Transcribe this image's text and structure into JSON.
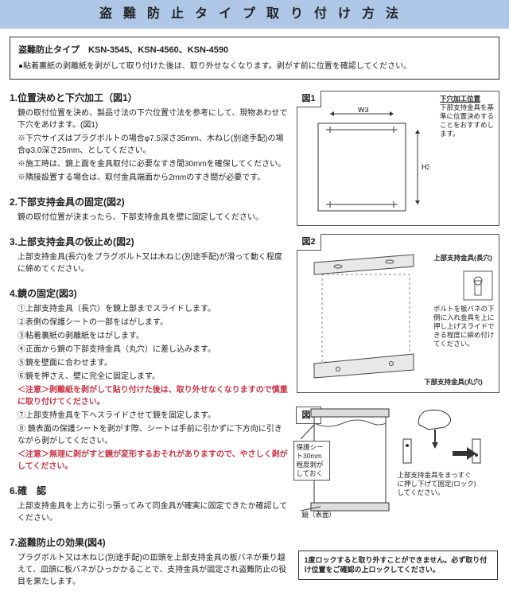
{
  "header": "盗難防止タイプ取り付け方法",
  "notice": {
    "models": "盗難防止タイプ　KSN-3545、KSN-4560、KSN-4590",
    "warn": "●粘着裏紙の剥離紙を剥がして取り付けた後は、取り外せなくなります。剥がす前に位置を確認してください。"
  },
  "sections": [
    {
      "title": "1.位置決めと下穴加工（図1）",
      "lines": [
        "鏡の取付位置を決め、製品寸法の下穴位置寸法を参考にして、現物あわせで下穴をあけます。(図1)",
        "※下穴サイズはプラグボルトの場合φ7.5深さ35mm、木ねじ(別途手配)の場合φ3.0深さ25mm、としてください。",
        "※施工時は、鏡上面を金具取付に必要なすき間30mmを確保してください。",
        "※隣接設置する場合は、取付金具端面から2mmのすき間が必要です。"
      ]
    },
    {
      "title": "2.下部支持金具の固定(図2)",
      "lines": [
        "鏡の取付位置が決まったら、下部支持金具を壁に固定してください。"
      ]
    },
    {
      "title": "3.上部支持金具の仮止め(図2)",
      "lines": [
        "上部支持金具(長穴)をプラグボルト又は木ねじ(別途手配)が滑って動く程度に締めてください。"
      ]
    },
    {
      "title": "4.鏡の固定(図3)",
      "lines": [
        "①上部支持金具（長穴）を鏡上部までスライドします。",
        "②表側の保護シートの一部をはがします。",
        "③粘着裏紙の剥離紙をはがします。",
        "④正面から鏡の下部支持金具（丸穴）に差し込みます。",
        "⑤鏡を壁面に合わせます。",
        "⑥鏡を押さえ、壁に完全に固定します。",
        {
          "t": "＜注意＞剥離紙を剥がして貼り付けた後は、取り外せなくなりますので慎重に取り付けてください。",
          "c": true
        },
        "⑦上部支持金具を下へスライドさせて鏡を固定します。",
        "⑧ 鏡表面の保護シートを剥がす際、シートは手前に引かずに下方向に引きながら剥がしてください。",
        {
          "t": "＜注意＞無理に剥がすと鏡が変形するおそれがありますので、やさしく剥がしてください。",
          "c": true
        }
      ]
    },
    {
      "title": "6.確　認",
      "lines": [
        "上部支持金具を上方に引っ張ってみて同金具が確実に固定できたか確認してください。"
      ]
    },
    {
      "title": "7.盗難防止の効果(図4)",
      "lines": [
        "プラグボルト又は木ねじ(別途手配)の皿頭を上部支持金具の板バネが乗り越えて、皿頭に板バネがひっかかることで、支持金具が固定され盗難防止の役目を果たします。"
      ]
    }
  ],
  "fig1": {
    "label": "図1",
    "w_label": "W3",
    "h_label": "H3",
    "note_title": "下穴加工位置",
    "note_body": "下部支持金具を基準に位置決めすることをおすすめします。"
  },
  "fig2": {
    "label": "図2",
    "upper_bracket": "上部支持金具(長穴)",
    "lower_bracket": "下部支持金具(丸穴)",
    "bolt_note": "ボルトを板バネの下側に入れ金具を上に押し上げスライドできる程度に締め付けてください。"
  },
  "fig3": {
    "label": "図3",
    "sheet_note": "保護シート30mm程度剥がしておく",
    "mirror_label": "鏡（表面）",
    "lock_note": "上部支持金具をまっすぐに押し下げて固定(ロック)してください。"
  },
  "lock_box": "1度ロックすると取り外すことができません。必ず取り付け位置をご確認の上ロックしてください。"
}
